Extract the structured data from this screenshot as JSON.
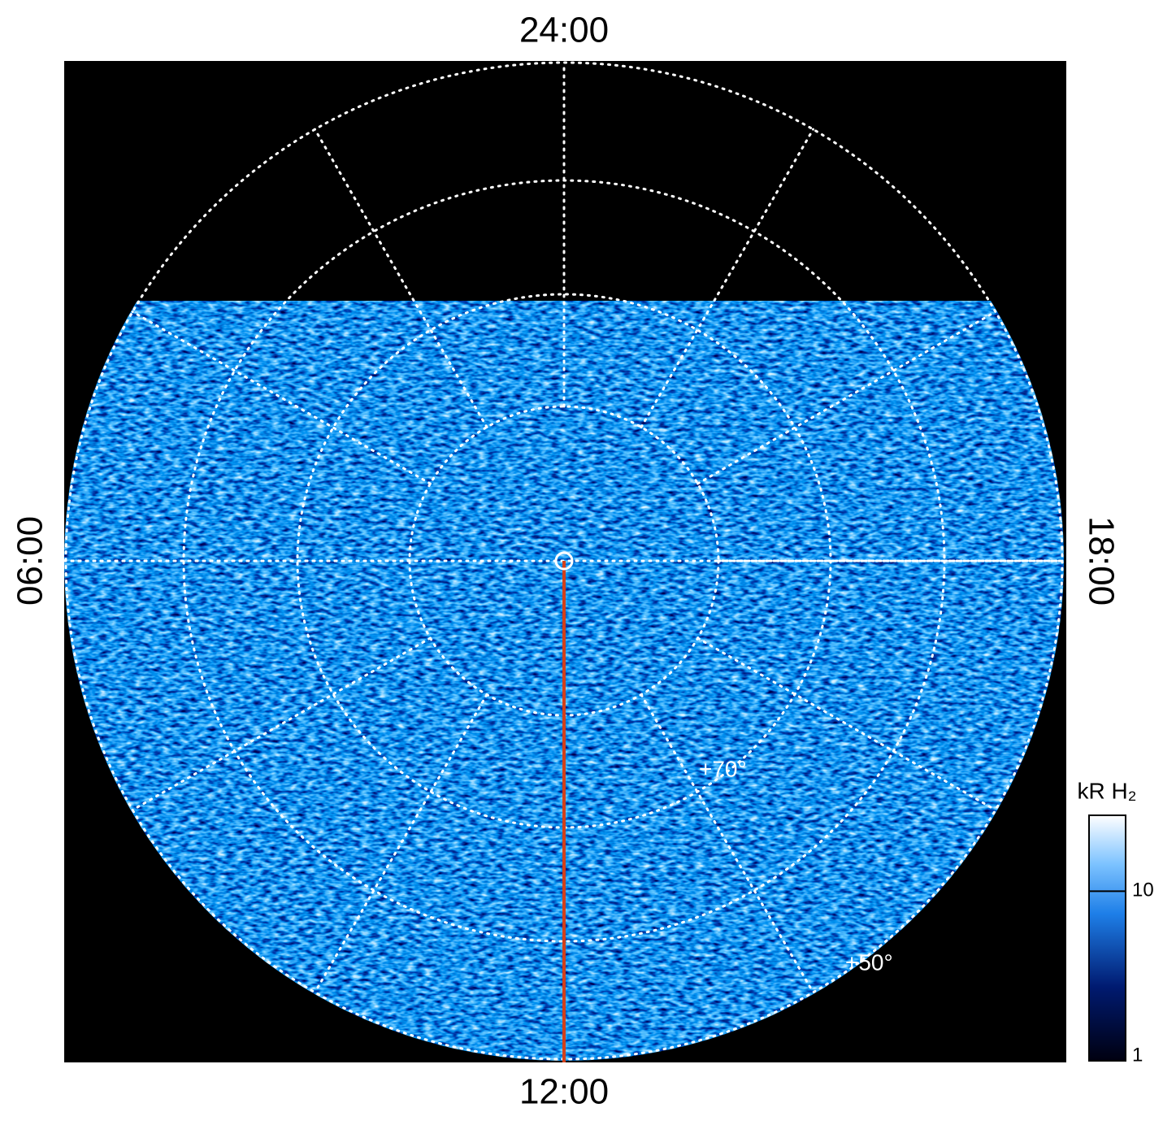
{
  "chart_data": {
    "type": "polar-image",
    "local_time_labels": {
      "top": "24:00",
      "left": "06:00",
      "bottom": "12:00",
      "right": "18:00"
    },
    "latitude_labels": [
      "+70°",
      "+50°"
    ],
    "colorbar": {
      "label": "kR H₂",
      "log": true,
      "lim": [
        1,
        28
      ],
      "ticks": [
        1,
        10
      ]
    },
    "meridian_color": "#d2401a"
  }
}
